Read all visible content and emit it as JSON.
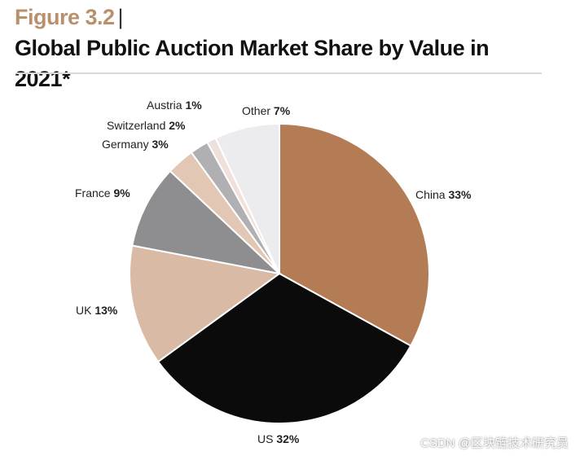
{
  "chart_data": {
    "type": "pie",
    "title_prefix": "Figure 3.2",
    "title": "Global Public Auction Market Share by Value in 2021*",
    "start": "top",
    "direction": "clockwise",
    "slices": [
      {
        "label": "China",
        "value": 33,
        "value_label": "33%",
        "color": "#b47c55"
      },
      {
        "label": "US",
        "value": 32,
        "value_label": "32%",
        "color": "#0b0b0b"
      },
      {
        "label": "UK",
        "value": 13,
        "value_label": "13%",
        "color": "#d9bba5"
      },
      {
        "label": "France",
        "value": 9,
        "value_label": "9%",
        "color": "#8e8e90"
      },
      {
        "label": "Germany",
        "value": 3,
        "value_label": "3%",
        "color": "#e2c7b4"
      },
      {
        "label": "Switzerland",
        "value": 2,
        "value_label": "2%",
        "color": "#b0b0b2"
      },
      {
        "label": "Austria",
        "value": 1,
        "value_label": "1%",
        "color": "#efe0dc"
      },
      {
        "label": "Other",
        "value": 7,
        "value_label": "7%",
        "color": "#ececee"
      }
    ]
  },
  "watermark": "CSDN @区块链技术研究员"
}
